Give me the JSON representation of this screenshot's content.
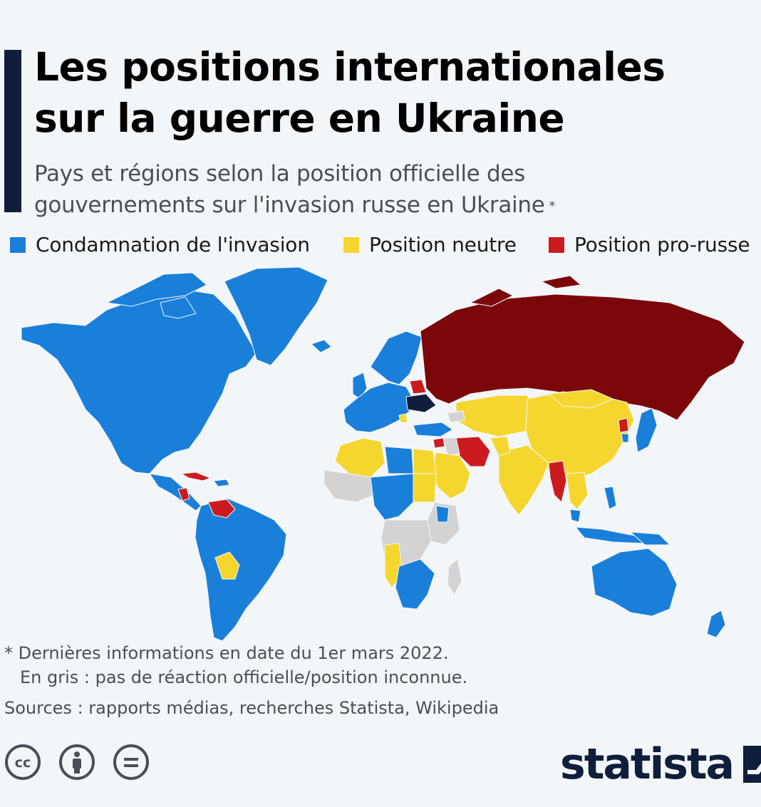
{
  "header": {
    "title_line1": "Les positions internationales",
    "title_line2": "sur la guerre en Ukraine",
    "subtitle_line1": "Pays et régions selon la position officielle des",
    "subtitle_line2": "gouvernements sur l'invasion russe en Ukraine",
    "subtitle_marker": "*",
    "accent_color": "#0f1e3a"
  },
  "legend": [
    {
      "label": "Condamnation de l'invasion",
      "color": "#1a7fd9"
    },
    {
      "label": "Position neutre",
      "color": "#f5d62e"
    },
    {
      "label": "Position pro-russe",
      "color": "#cc1b1f"
    }
  ],
  "map": {
    "colors": {
      "condemn": "#1a7fd9",
      "neutral": "#f5d62e",
      "pro_russia": "#cc1b1f",
      "russia": "#7b070a",
      "ukraine": "#0f1e3a",
      "unknown": "#d3d3d3"
    }
  },
  "notes": {
    "line1": "* Dernières informations en date du 1er mars 2022.",
    "line2": "En gris : pas de réaction officielle/position inconnue.",
    "sources": "Sources : rapports médias, recherches Statista, Wikipedia"
  },
  "footer": {
    "license_icons": [
      "creative-commons-icon",
      "attribution-icon",
      "no-derivatives-icon"
    ],
    "brand": "statista"
  }
}
